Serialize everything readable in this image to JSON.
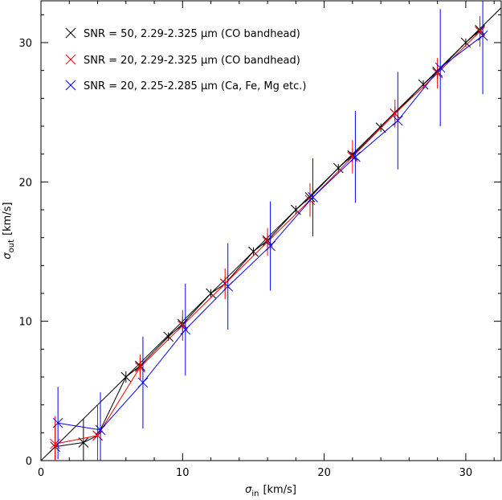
{
  "chart_data": {
    "type": "scatter",
    "xlabel_symbol": "σ",
    "xlabel_sub": "in",
    "xlabel_unit": "[km/s]",
    "ylabel_symbol": "σ",
    "ylabel_sub": "out",
    "ylabel_unit": "[km/s]",
    "xlim": [
      0,
      32.5
    ],
    "ylim": [
      0,
      33
    ],
    "x_ticks": [
      0,
      10,
      20,
      30
    ],
    "y_ticks": [
      0,
      10,
      20,
      30
    ],
    "one_to_one_line": true,
    "grid": false,
    "legend_position": "top-left",
    "series": [
      {
        "name": "SNR = 50, 2.29-2.325 μm (CO bandhead)",
        "color": "#000000",
        "x": [
          1,
          3,
          4,
          6,
          7,
          9,
          10,
          12,
          13,
          15,
          16,
          18,
          19,
          21,
          22,
          24,
          25,
          27,
          28,
          30,
          31
        ],
        "y": [
          1.0,
          1.3,
          1.8,
          6.0,
          6.8,
          8.9,
          9.8,
          12.0,
          12.7,
          15.0,
          15.8,
          18.0,
          18.9,
          21.0,
          21.9,
          23.9,
          24.9,
          27.0,
          27.9,
          30.0,
          30.9
        ],
        "err": [
          1.6,
          1.7,
          1.6,
          0.4,
          0.6,
          0.3,
          0.5,
          0.3,
          0.5,
          0.3,
          0.5,
          0.3,
          0.5,
          0.3,
          0.5,
          0.3,
          0.5,
          0.3,
          0.5,
          0.3,
          0.5
        ]
      },
      {
        "name": "SNR = 20, 2.29-2.325 μm (CO bandhead)",
        "color": "#ff0000",
        "x": [
          1,
          4,
          7,
          10,
          13,
          16,
          19,
          22,
          25,
          28,
          31
        ],
        "y": [
          1.2,
          1.8,
          6.7,
          9.7,
          12.7,
          15.7,
          18.7,
          21.8,
          24.9,
          27.8,
          30.8
        ],
        "err": [
          2.0,
          2.2,
          0.9,
          1.1,
          1.1,
          1.0,
          1.2,
          1.2,
          1.0,
          1.1,
          1.1
        ]
      },
      {
        "name": "SNR = 20, 2.25-2.285 μm (Ca, Fe, Mg etc.)",
        "color": "#0000ff",
        "x": [
          1.2,
          4.2,
          7.2,
          10.2,
          13.2,
          16.2,
          19.2,
          22.2,
          25.2,
          28.2,
          31.2
        ],
        "y": [
          2.7,
          2.2,
          5.6,
          9.4,
          12.5,
          15.4,
          18.9,
          21.8,
          24.4,
          28.2,
          30.5
        ],
        "err": [
          2.6,
          2.7,
          3.3,
          3.3,
          3.1,
          3.2,
          2.8,
          3.3,
          3.5,
          4.2,
          4.2
        ]
      }
    ]
  }
}
